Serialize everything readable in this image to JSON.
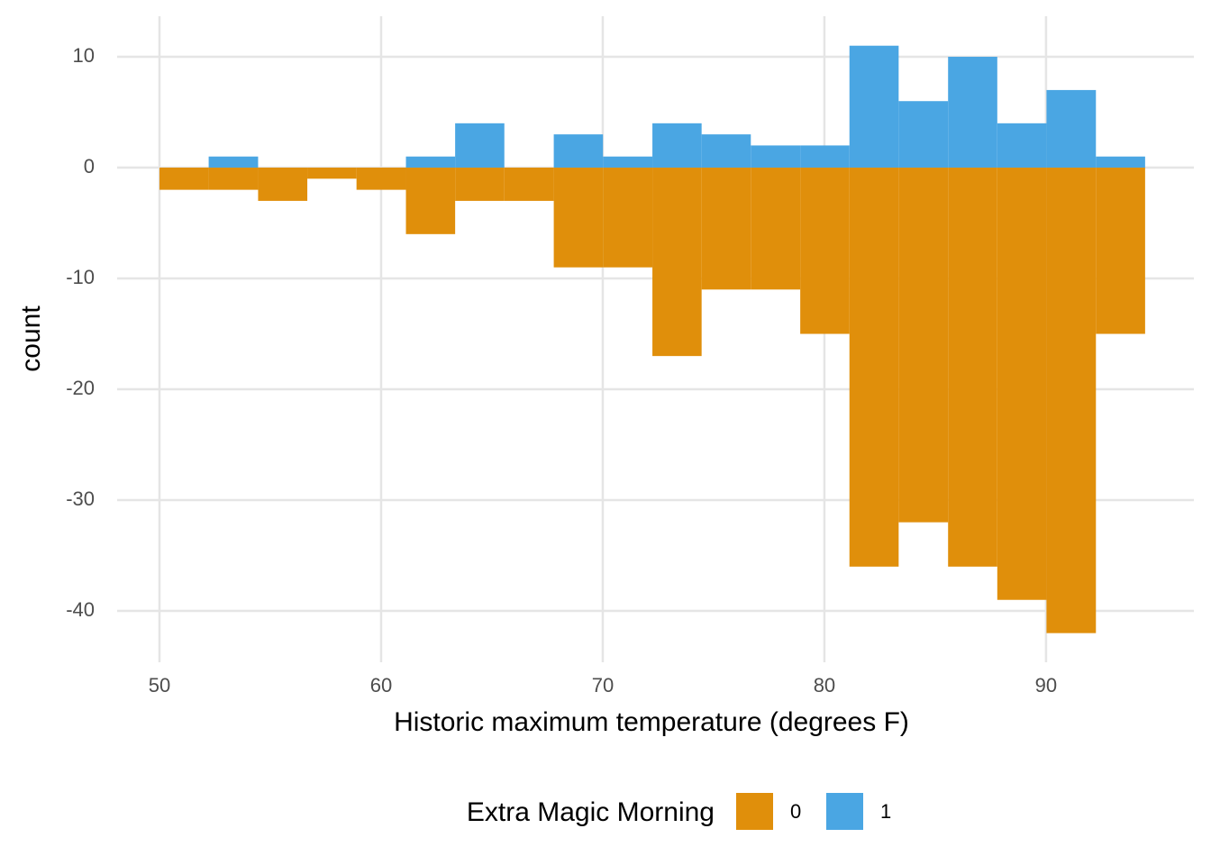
{
  "chart_data": {
    "type": "histogram",
    "x_label": "Historic maximum temperature (degrees F)",
    "y_label": "count",
    "legend_title": "Extra Magic Morning",
    "legend_position": "bottom",
    "bins": [
      50,
      52.22,
      54.45,
      56.67,
      58.89,
      61.12,
      63.34,
      65.56,
      67.79,
      70.01,
      72.24,
      74.46,
      76.68,
      78.91,
      81.13,
      83.35,
      85.58,
      87.8,
      90.02,
      92.25,
      94.47
    ],
    "series": [
      {
        "name": "0",
        "color": "#e08f0b",
        "values": [
          -2,
          -2,
          -3,
          -1,
          -2,
          -6,
          -3,
          -3,
          -9,
          -9,
          -17,
          -11,
          -11,
          -15,
          -36,
          -32,
          -36,
          -39,
          -42,
          -15
        ]
      },
      {
        "name": "1",
        "color": "#4aa6e3",
        "values": [
          0,
          1,
          0,
          0,
          0,
          1,
          4,
          0,
          3,
          1,
          4,
          3,
          2,
          2,
          11,
          6,
          10,
          4,
          7,
          1
        ]
      }
    ],
    "xlim": [
      48.09,
      96.67
    ],
    "ylim": [
      -44.63,
      13.66
    ],
    "xticks": [
      50,
      60,
      70,
      80,
      90
    ],
    "yticks": [
      -40,
      -30,
      -20,
      -10,
      0,
      10
    ],
    "grid": true
  }
}
